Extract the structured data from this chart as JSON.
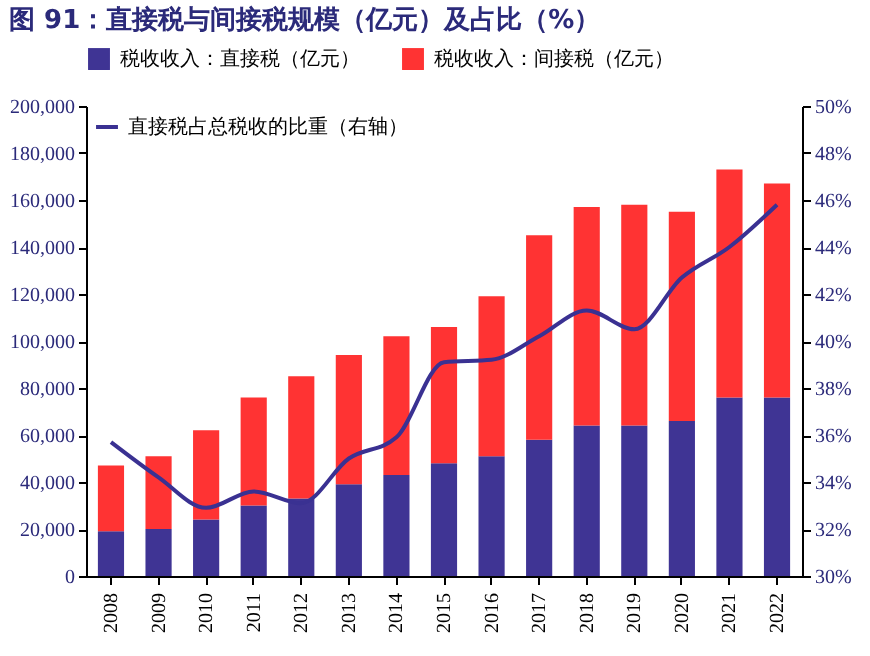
{
  "chart_data": {
    "type": "bar",
    "title": "图 91：直接税与间接税规模（亿元）及占比（%）",
    "categories": [
      "2008",
      "2009",
      "2010",
      "2011",
      "2012",
      "2013",
      "2014",
      "2015",
      "2016",
      "2017",
      "2018",
      "2019",
      "2020",
      "2021",
      "2022"
    ],
    "stacked": true,
    "legend": "top",
    "grid": false,
    "marker": "none",
    "series": [
      {
        "name": "税收收入：直接税（亿元）",
        "color": "#3f3494",
        "values": [
          19000,
          20000,
          24000,
          30000,
          33000,
          39000,
          43000,
          48000,
          51000,
          58000,
          64000,
          64000,
          66000,
          76000,
          76000
        ]
      },
      {
        "name": "税收收入：间接税（亿元）",
        "color": "#ff3333",
        "values": [
          28000,
          31000,
          38000,
          46000,
          52000,
          55000,
          59000,
          58000,
          68000,
          87000,
          93000,
          94000,
          89000,
          97000,
          91000
        ]
      },
      {
        "name": "直接税占总税收的比重（右轴）",
        "type": "line",
        "axis": "y2",
        "color": "#3a3192",
        "values": [
          35.7,
          34.2,
          32.9,
          33.6,
          33.1,
          35.0,
          35.9,
          39.1,
          39.2,
          40.2,
          41.3,
          40.5,
          42.7,
          44.0,
          45.8
        ]
      }
    ],
    "ylim": [
      0,
      200000
    ],
    "yticks": [
      {
        "value": 0,
        "label": "0"
      },
      {
        "value": 20000,
        "label": "20,000"
      },
      {
        "value": 40000,
        "label": "40,000"
      },
      {
        "value": 60000,
        "label": "60,000"
      },
      {
        "value": 80000,
        "label": "80,000"
      },
      {
        "value": 100000,
        "label": "100,000"
      },
      {
        "value": 120000,
        "label": "120,000"
      },
      {
        "value": 140000,
        "label": "140,000"
      },
      {
        "value": 160000,
        "label": "160,000"
      },
      {
        "value": 180000,
        "label": "180,000"
      },
      {
        "value": 200000,
        "label": "200,000"
      }
    ],
    "y2lim": [
      30,
      50
    ],
    "y2ticks": [
      {
        "value": 30,
        "label": "30%"
      },
      {
        "value": 32,
        "label": "32%"
      },
      {
        "value": 34,
        "label": "34%"
      },
      {
        "value": 36,
        "label": "36%"
      },
      {
        "value": 38,
        "label": "38%"
      },
      {
        "value": 40,
        "label": "40%"
      },
      {
        "value": 42,
        "label": "42%"
      },
      {
        "value": 44,
        "label": "44%"
      },
      {
        "value": 46,
        "label": "46%"
      },
      {
        "value": 48,
        "label": "48%"
      },
      {
        "value": 50,
        "label": "50%"
      }
    ]
  }
}
